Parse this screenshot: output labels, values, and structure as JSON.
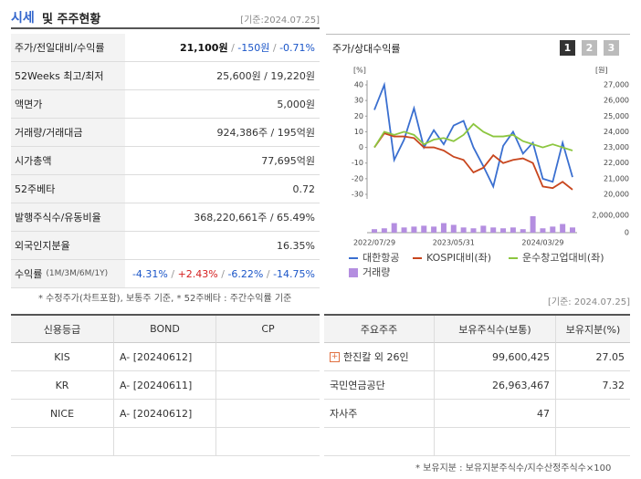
{
  "header": {
    "title": "시세",
    "title_rest": "및 주주현황",
    "date": "[기준:2024.07.25]"
  },
  "summary": {
    "rows": [
      {
        "label": "주가/전일대비/수익률",
        "parts": [
          "21,100원",
          " / ",
          "-150원",
          " / ",
          "-0.71%"
        ]
      },
      {
        "label": "52Weeks 최고/최저",
        "parts": [
          "25,600원 / 19,220원"
        ]
      },
      {
        "label": "액면가",
        "parts": [
          "5,000원"
        ]
      },
      {
        "label": "거래량/거래대금",
        "parts": [
          "924,386주 / 195억원"
        ]
      },
      {
        "label": "시가총액",
        "parts": [
          "77,695억원"
        ]
      },
      {
        "label": "52주베타",
        "parts": [
          "0.72"
        ]
      },
      {
        "label": "발행주식수/유동비율",
        "parts": [
          "368,220,661주 / 65.49%"
        ]
      },
      {
        "label": "외국인지분율",
        "parts": [
          "16.35%"
        ]
      },
      {
        "label": "수익률",
        "sub": "(1M/3M/6M/1Y)",
        "parts": [
          "-4.31%",
          " / ",
          "+2.43%",
          " / ",
          "-6.22%",
          " / ",
          "-14.75%"
        ]
      }
    ],
    "note": "* 수정주가(차트포함), 보통주 기준, * 52주베타 : 주간수익률 기준"
  },
  "chart_panel": {
    "title": "주가/상대수익률",
    "tabs": [
      "1",
      "2",
      "3"
    ]
  },
  "chart_data": {
    "type": "line",
    "y_unit": "[%]",
    "y2_unit": "[원]",
    "categories": [
      "2022/07/29",
      null,
      null,
      null,
      null,
      null,
      null,
      null,
      "2023/05/31",
      null,
      null,
      null,
      null,
      null,
      null,
      null,
      null,
      "2024/03/29",
      null,
      null,
      null
    ],
    "series": [
      {
        "name": "대한항공",
        "color": "#3a6fd0",
        "values": [
          24,
          40,
          -8,
          5,
          25,
          0,
          11,
          2,
          14,
          17,
          0,
          -12,
          -25,
          1,
          10,
          -4,
          3,
          -20,
          -22,
          3,
          -19
        ]
      },
      {
        "name": "KOSPI대비(좌)",
        "color": "#c8461e",
        "values": [
          0,
          9,
          7,
          7,
          6,
          0,
          0,
          -2,
          -6,
          -8,
          -16,
          -13,
          -5,
          -10,
          -8,
          -7,
          -10,
          -25,
          -26,
          -22,
          -27
        ]
      },
      {
        "name": "운수창고업대비(좌)",
        "color": "#8cc63f",
        "values": [
          0,
          10,
          8,
          10,
          8,
          2,
          5,
          6,
          4,
          8,
          15,
          10,
          7,
          7,
          8,
          4,
          2,
          0,
          2,
          0,
          -2
        ]
      },
      {
        "name": "거래량",
        "color": "#b48ee0",
        "axis": "volume",
        "values": [
          400000,
          500000,
          1100000,
          600000,
          700000,
          800000,
          700000,
          1100000,
          900000,
          600000,
          500000,
          800000,
          600000,
          500000,
          600000,
          400000,
          1900000,
          500000,
          700000,
          1000000,
          600000
        ]
      }
    ],
    "ylim": [
      -30,
      40
    ],
    "yticks": [
      40,
      30,
      20,
      10,
      0,
      -10,
      -20,
      -30
    ],
    "y2lim": [
      20000,
      27000
    ],
    "y2ticks": [
      {
        "value": 27000,
        "label": "27,000"
      },
      {
        "value": 26000,
        "label": "26,000"
      },
      {
        "value": 25000,
        "label": "25,000"
      },
      {
        "value": 24000,
        "label": "24,000"
      },
      {
        "value": 23000,
        "label": "23,000"
      },
      {
        "value": 22000,
        "label": "22,000"
      },
      {
        "value": 21000,
        "label": "21,000"
      },
      {
        "value": 20000,
        "label": "20,000"
      }
    ],
    "volume_ylim": [
      0,
      2000000
    ],
    "volume_yticks": [
      {
        "value": 2000000,
        "label": "2,000,000"
      },
      0
    ],
    "grid": false
  },
  "date_right": "[기준: 2024.07.25]",
  "credit": {
    "headers": [
      "신용등급",
      "BOND",
      "CP"
    ],
    "rows": [
      [
        "KIS",
        "A-  [20240612]"
      ],
      [
        "KR",
        "A-  [20240611]"
      ],
      [
        "NICE",
        "A-  [20240612]"
      ]
    ]
  },
  "holders": {
    "headers": [
      "주요주주",
      "보유주식수(보통)",
      "보유지분(%)"
    ],
    "rows": [
      [
        "한진칼 외 26인",
        "99,600,425",
        "27.05"
      ],
      [
        "국민연금공단",
        "26,963,467",
        "7.32"
      ],
      [
        "자사주",
        "47"
      ]
    ],
    "note": "* 보유지분 : 보유지분주식수/지수산정주식수×100"
  }
}
